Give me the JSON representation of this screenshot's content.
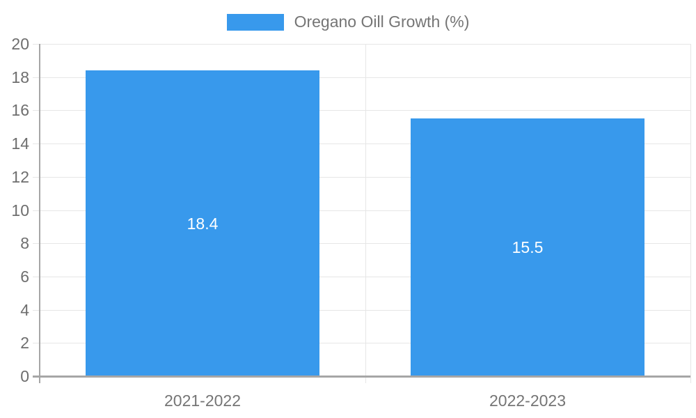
{
  "chart_data": {
    "type": "bar",
    "title": "",
    "legend_label": "Oregano Oill Growth (%)",
    "legend_position": "top",
    "categories": [
      "2021-2022",
      "2022-2023"
    ],
    "series": [
      {
        "name": "Oregano Oill Growth (%)",
        "values": [
          18.4,
          15.5
        ],
        "data_labels": [
          "18.4",
          "15.5"
        ]
      }
    ],
    "xlabel": "",
    "ylabel": "",
    "ylim": [
      0,
      20
    ],
    "ytick_step": 2,
    "ytick_labels": [
      "0",
      "2",
      "4",
      "6",
      "8",
      "10",
      "12",
      "14",
      "16",
      "18",
      "20"
    ],
    "grid": true,
    "colors": {
      "bar": "#3899ec",
      "legend_text": "#757575",
      "axis_tick_text": "#6e6e6e",
      "gridline": "#e6e6e6",
      "axis_line": "#a6a6a6",
      "data_label_text": "#ffffff"
    }
  }
}
